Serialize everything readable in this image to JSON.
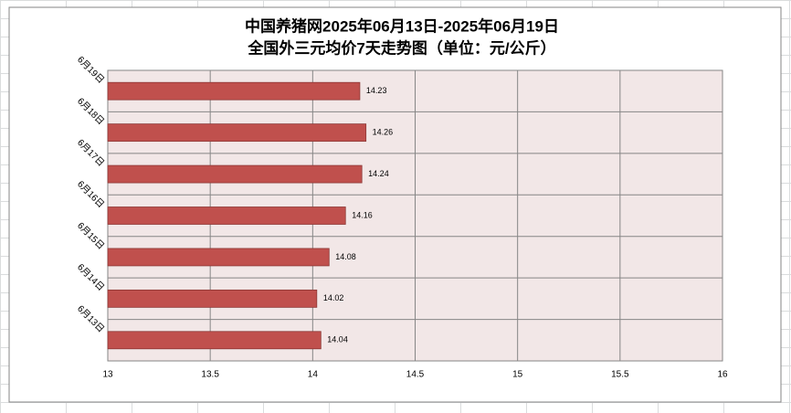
{
  "chart_data": {
    "type": "barh",
    "title": "中国养猪网2025年06月13日-2025年06月19日",
    "subtitle": "全国外三元均价7天走势图（单位：元/公斤）",
    "categories": [
      "6月19日",
      "6月18日",
      "6月17日",
      "6月16日",
      "6月15日",
      "6月14日",
      "6月13日"
    ],
    "values": [
      14.23,
      14.26,
      14.24,
      14.16,
      14.08,
      14.02,
      14.04
    ],
    "color": "#c0504d",
    "xlim": [
      13,
      16
    ],
    "xticks": [
      13,
      13.5,
      14,
      14.5,
      15,
      15.5,
      16
    ],
    "grid": true
  }
}
